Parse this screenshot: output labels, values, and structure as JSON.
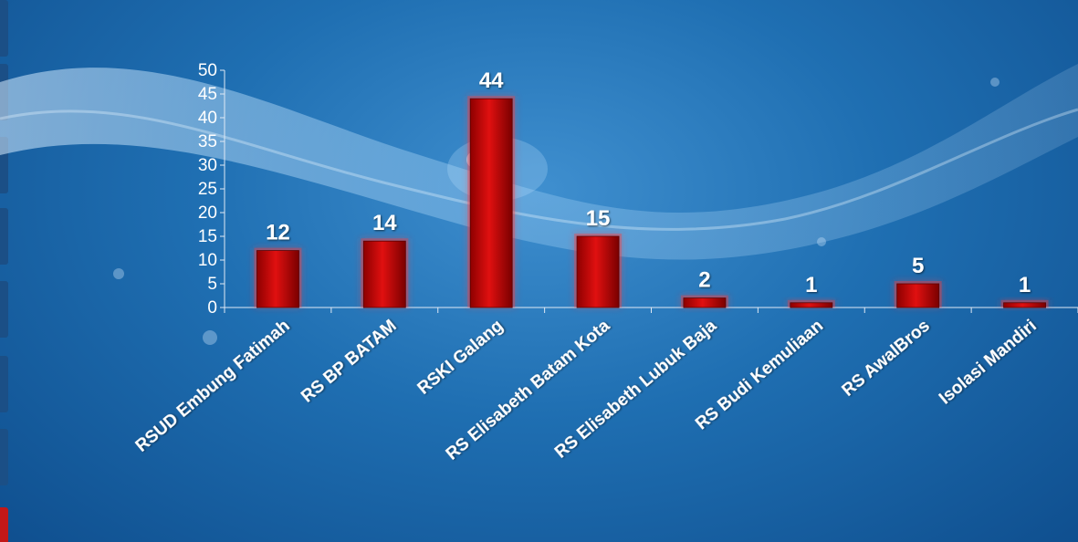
{
  "colors": {
    "bar": "#c00000",
    "bar_glow": "#ff3b3b",
    "text": "#ffffff",
    "axis": "#dfe9f5",
    "edge_blue": "#1b4f86",
    "edge_red": "#c21818"
  },
  "chart_data": {
    "type": "bar",
    "categories": [
      "RSUD Embung Fatimah",
      "RS BP BATAM",
      "RSKI Galang",
      "RS Elisabeth Batam Kota",
      "RS Elisabeth Lubuk Baja",
      "RS Budi Kemuliaan",
      "RS AwalBros",
      "Isolasi Mandiri"
    ],
    "values": [
      12,
      14,
      44,
      15,
      2,
      1,
      5,
      1
    ],
    "data_labels": [
      "12",
      "14",
      "44",
      "15",
      "2",
      "1",
      "5",
      "1"
    ],
    "ylim": [
      0,
      50
    ],
    "yticks": [
      "0",
      "5",
      "10",
      "15",
      "20",
      "25",
      "30",
      "35",
      "40",
      "45",
      "50"
    ],
    "grid": false,
    "legend": "none"
  }
}
